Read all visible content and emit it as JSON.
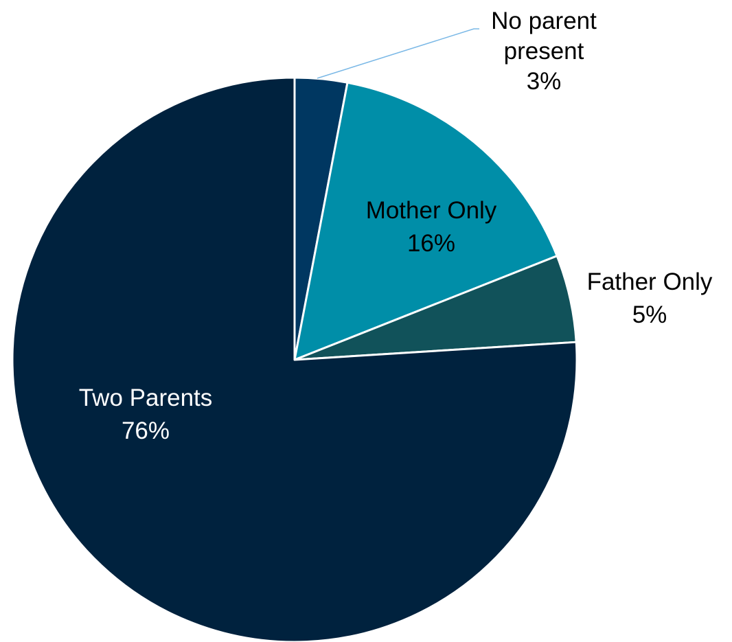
{
  "chart_data": {
    "type": "pie",
    "title": "",
    "start_angle_deg": 0,
    "direction": "clockwise",
    "slices": [
      {
        "label": "No parent present",
        "value": 3,
        "value_label": "3%",
        "color": "#003761",
        "label_color": "#000000",
        "label_lines": [
          "No parent",
          "present",
          "3%"
        ],
        "label_position": "outside-with-leader",
        "leader_color": "#7ab8e6"
      },
      {
        "label": "Mother Only",
        "value": 16,
        "value_label": "16%",
        "color": "#008ea8",
        "label_color": "#000000",
        "label_lines": [
          "Mother Only",
          "16%"
        ],
        "label_position": "inside"
      },
      {
        "label": "Father Only",
        "value": 5,
        "value_label": "5%",
        "color": "#11525a",
        "label_color": "#000000",
        "label_lines": [
          "Father Only",
          "5%"
        ],
        "label_position": "outside"
      },
      {
        "label": "Two Parents",
        "value": 76,
        "value_label": "76%",
        "color": "#00223e",
        "label_color": "#ffffff",
        "label_lines": [
          "Two Parents",
          "76%"
        ],
        "label_position": "inside"
      }
    ]
  }
}
